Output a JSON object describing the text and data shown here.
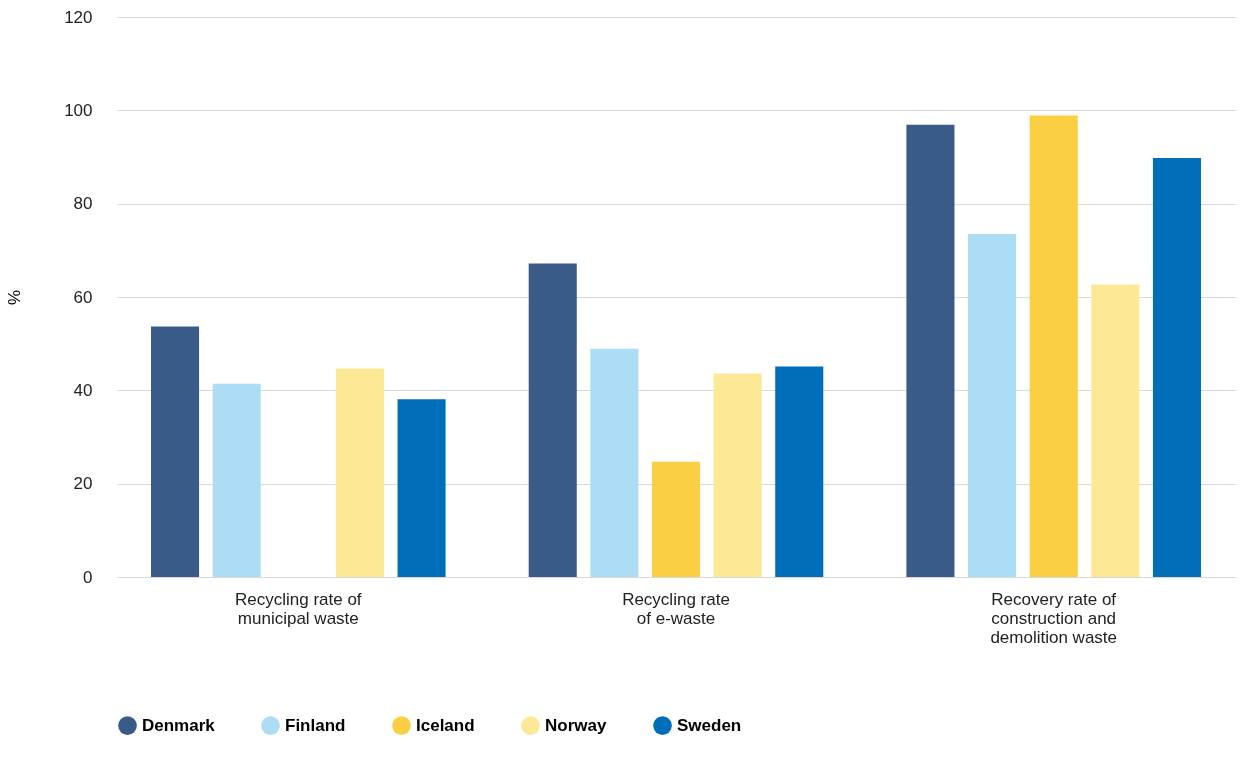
{
  "chart_data": {
    "type": "bar",
    "ylabel": "%",
    "categories": [
      "Recycling rate of\nmunicipal waste",
      "Recycling rate\nof e-waste",
      "Recovery rate of\nconstruction and\ndemolition waste"
    ],
    "series": [
      {
        "name": "Denmark",
        "color": "#3a5a87",
        "values": [
          53.7,
          67.2,
          96.9
        ]
      },
      {
        "name": "Finland",
        "color": "#addcf5",
        "values": [
          41.4,
          48.9,
          73.5
        ]
      },
      {
        "name": "Iceland",
        "color": "#fbcf44",
        "values": [
          null,
          24.7,
          98.9
        ]
      },
      {
        "name": "Norway",
        "color": "#fde995",
        "values": [
          44.7,
          43.6,
          62.7
        ]
      },
      {
        "name": "Sweden",
        "color": "#006eb8",
        "values": [
          38.1,
          45.1,
          89.8
        ]
      }
    ],
    "ylim": [
      0,
      120
    ],
    "yticks": [
      0,
      20,
      40,
      60,
      80,
      100,
      120
    ],
    "grid": "y",
    "legend": "bottom"
  }
}
